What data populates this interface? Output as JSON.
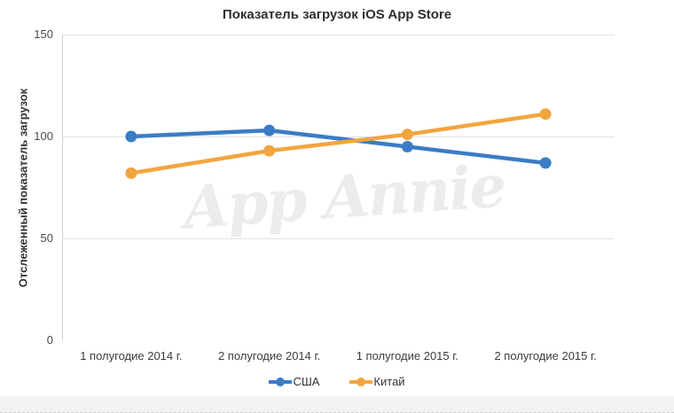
{
  "chart_data": {
    "type": "line",
    "title": "Показатель загрузок iOS App Store",
    "xlabel": "",
    "ylabel": "Отслеженный показатель загрузок",
    "categories": [
      "1 полугодие 2014 г.",
      "2 полугодие 2014 г.",
      "1 полугодие 2015 г.",
      "2 полугодие 2015 г."
    ],
    "series": [
      {
        "name": "США",
        "color": "#3a7cc6",
        "values": [
          100,
          103,
          95,
          87
        ]
      },
      {
        "name": "Китай",
        "color": "#f2a53e",
        "values": [
          82,
          93,
          101,
          111
        ]
      }
    ],
    "ylim": [
      0,
      150
    ],
    "yticks": [
      0,
      50,
      100,
      150
    ],
    "grid": true,
    "legend_position": "bottom",
    "watermark": "App Annie",
    "grid_color": "#e2e2e2",
    "axis_color": "#cfcfcf"
  }
}
